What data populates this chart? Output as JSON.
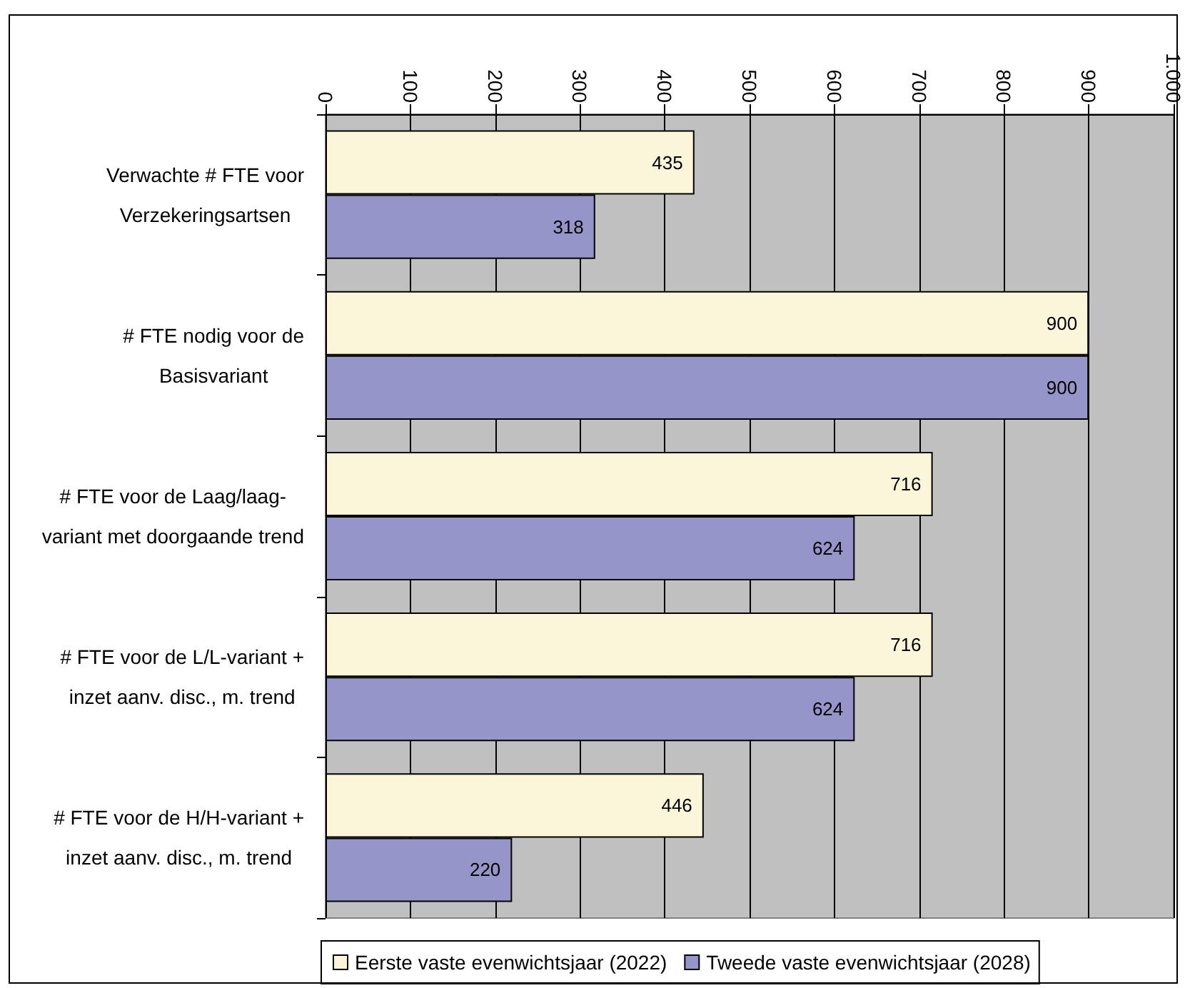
{
  "chart_data": {
    "type": "bar",
    "orientation": "horizontal",
    "categories": [
      "Verwachte # FTE voor Verzekeringsartsen",
      "# FTE nodig voor de Basisvariant",
      "# FTE voor de Laag/laag-variant met doorgaande trend",
      "# FTE voor de L/L-variant + inzet aanv. disc., m. trend",
      "# FTE voor de H/H-variant + inzet aanv. disc., m. trend"
    ],
    "series": [
      {
        "name": "Eerste vaste evenwichtsjaar (2022)",
        "color": "#fbf5d9",
        "values": [
          435,
          900,
          716,
          716,
          446
        ]
      },
      {
        "name": "Tweede vaste evenwichtsjaar (2028)",
        "color": "#9595c9",
        "values": [
          318,
          900,
          624,
          624,
          220
        ]
      }
    ],
    "xlim": [
      0,
      1000
    ],
    "xticks": [
      0,
      100,
      200,
      300,
      400,
      500,
      600,
      700,
      800,
      900,
      {
        "value": 1000,
        "label": "1.000"
      }
    ],
    "grid": "x",
    "legend": "bottom",
    "data_labels": true
  }
}
